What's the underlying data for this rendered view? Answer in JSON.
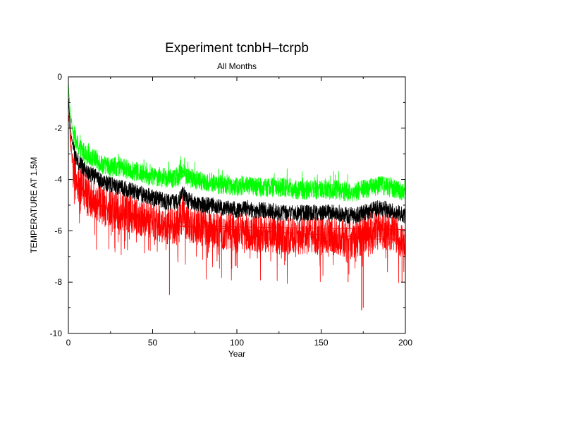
{
  "chart_data": {
    "type": "line",
    "title": "Experiment tcnbH–tcrpb",
    "subtitle": "All Months",
    "xlabel": "Year",
    "ylabel": "TEMPERATURE AT 1.5M",
    "xlim": [
      0,
      200
    ],
    "ylim": [
      -10,
      0
    ],
    "xticks": [
      0,
      50,
      100,
      150,
      200
    ],
    "yticks": [
      0,
      -2,
      -4,
      -6,
      -8,
      -10
    ],
    "grid": false,
    "legend": "none",
    "series_colors": [
      "#00ff00",
      "#000000",
      "#ff0000"
    ],
    "series": [
      {
        "color": "#00ff00",
        "x": [
          0,
          1,
          2,
          3,
          5,
          7,
          10,
          13,
          16,
          20,
          25,
          30,
          35,
          40,
          45,
          50,
          55,
          60,
          65,
          68,
          70,
          75,
          80,
          85,
          90,
          95,
          100,
          105,
          110,
          115,
          120,
          125,
          130,
          135,
          140,
          145,
          150,
          155,
          160,
          165,
          170,
          175,
          180,
          185,
          190,
          195,
          200
        ],
        "values": [
          -0.3,
          -1.3,
          -1.8,
          -2.2,
          -2.6,
          -2.8,
          -3.0,
          -3.1,
          -3.2,
          -3.4,
          -3.5,
          -3.5,
          -3.6,
          -3.7,
          -3.8,
          -3.9,
          -3.9,
          -4.0,
          -3.9,
          -3.6,
          -3.9,
          -4.0,
          -4.1,
          -4.1,
          -4.2,
          -4.2,
          -4.3,
          -4.2,
          -4.3,
          -4.3,
          -4.3,
          -4.3,
          -4.3,
          -4.4,
          -4.4,
          -4.4,
          -4.4,
          -4.4,
          -4.4,
          -4.5,
          -4.5,
          -4.4,
          -4.3,
          -4.2,
          -4.3,
          -4.4,
          -4.5
        ],
        "noise": 0.38
      },
      {
        "color": "#000000",
        "x": [
          0,
          1,
          2,
          3,
          5,
          7,
          10,
          13,
          16,
          20,
          25,
          30,
          35,
          40,
          45,
          50,
          55,
          60,
          65,
          68,
          70,
          75,
          80,
          85,
          90,
          95,
          100,
          105,
          110,
          115,
          120,
          125,
          130,
          135,
          140,
          145,
          150,
          155,
          160,
          165,
          170,
          175,
          180,
          185,
          190,
          195,
          200
        ],
        "values": [
          -0.8,
          -1.8,
          -2.4,
          -2.8,
          -3.2,
          -3.4,
          -3.6,
          -3.8,
          -3.9,
          -4.1,
          -4.2,
          -4.3,
          -4.4,
          -4.5,
          -4.6,
          -4.7,
          -4.8,
          -4.9,
          -4.8,
          -4.5,
          -4.8,
          -4.9,
          -5.0,
          -5.0,
          -5.1,
          -5.1,
          -5.2,
          -5.1,
          -5.2,
          -5.2,
          -5.2,
          -5.3,
          -5.3,
          -5.3,
          -5.3,
          -5.3,
          -5.3,
          -5.3,
          -5.3,
          -5.4,
          -5.4,
          -5.3,
          -5.2,
          -5.1,
          -5.2,
          -5.3,
          -5.4
        ],
        "noise": 0.32
      },
      {
        "color": "#ff0000",
        "x": [
          0,
          1,
          2,
          3,
          5,
          7,
          10,
          13,
          16,
          20,
          25,
          30,
          35,
          40,
          45,
          50,
          55,
          60,
          65,
          68,
          70,
          75,
          80,
          85,
          90,
          95,
          100,
          105,
          110,
          115,
          120,
          125,
          130,
          135,
          140,
          145,
          150,
          155,
          160,
          165,
          170,
          175,
          180,
          185,
          190,
          195,
          200
        ],
        "values": [
          -1.2,
          -2.3,
          -3.0,
          -3.5,
          -4.0,
          -4.2,
          -4.5,
          -4.7,
          -4.8,
          -5.0,
          -5.1,
          -5.2,
          -5.3,
          -5.4,
          -5.5,
          -5.6,
          -5.7,
          -5.8,
          -5.7,
          -5.3,
          -5.7,
          -5.8,
          -5.9,
          -5.9,
          -6.0,
          -6.0,
          -6.1,
          -6.0,
          -6.1,
          -6.1,
          -6.1,
          -6.2,
          -6.2,
          -6.2,
          -6.2,
          -6.2,
          -6.2,
          -6.2,
          -6.2,
          -6.3,
          -6.4,
          -6.2,
          -6.0,
          -5.9,
          -6.0,
          -6.2,
          -6.4
        ],
        "noise": 0.75
      }
    ],
    "extremes": [
      {
        "x": 60,
        "y": -8.5
      },
      {
        "x": 174,
        "y": -9.1
      },
      {
        "x": 175,
        "y": -9.0
      },
      {
        "x": 166,
        "y": -8.0
      },
      {
        "x": 198,
        "y": -8.0
      }
    ]
  }
}
